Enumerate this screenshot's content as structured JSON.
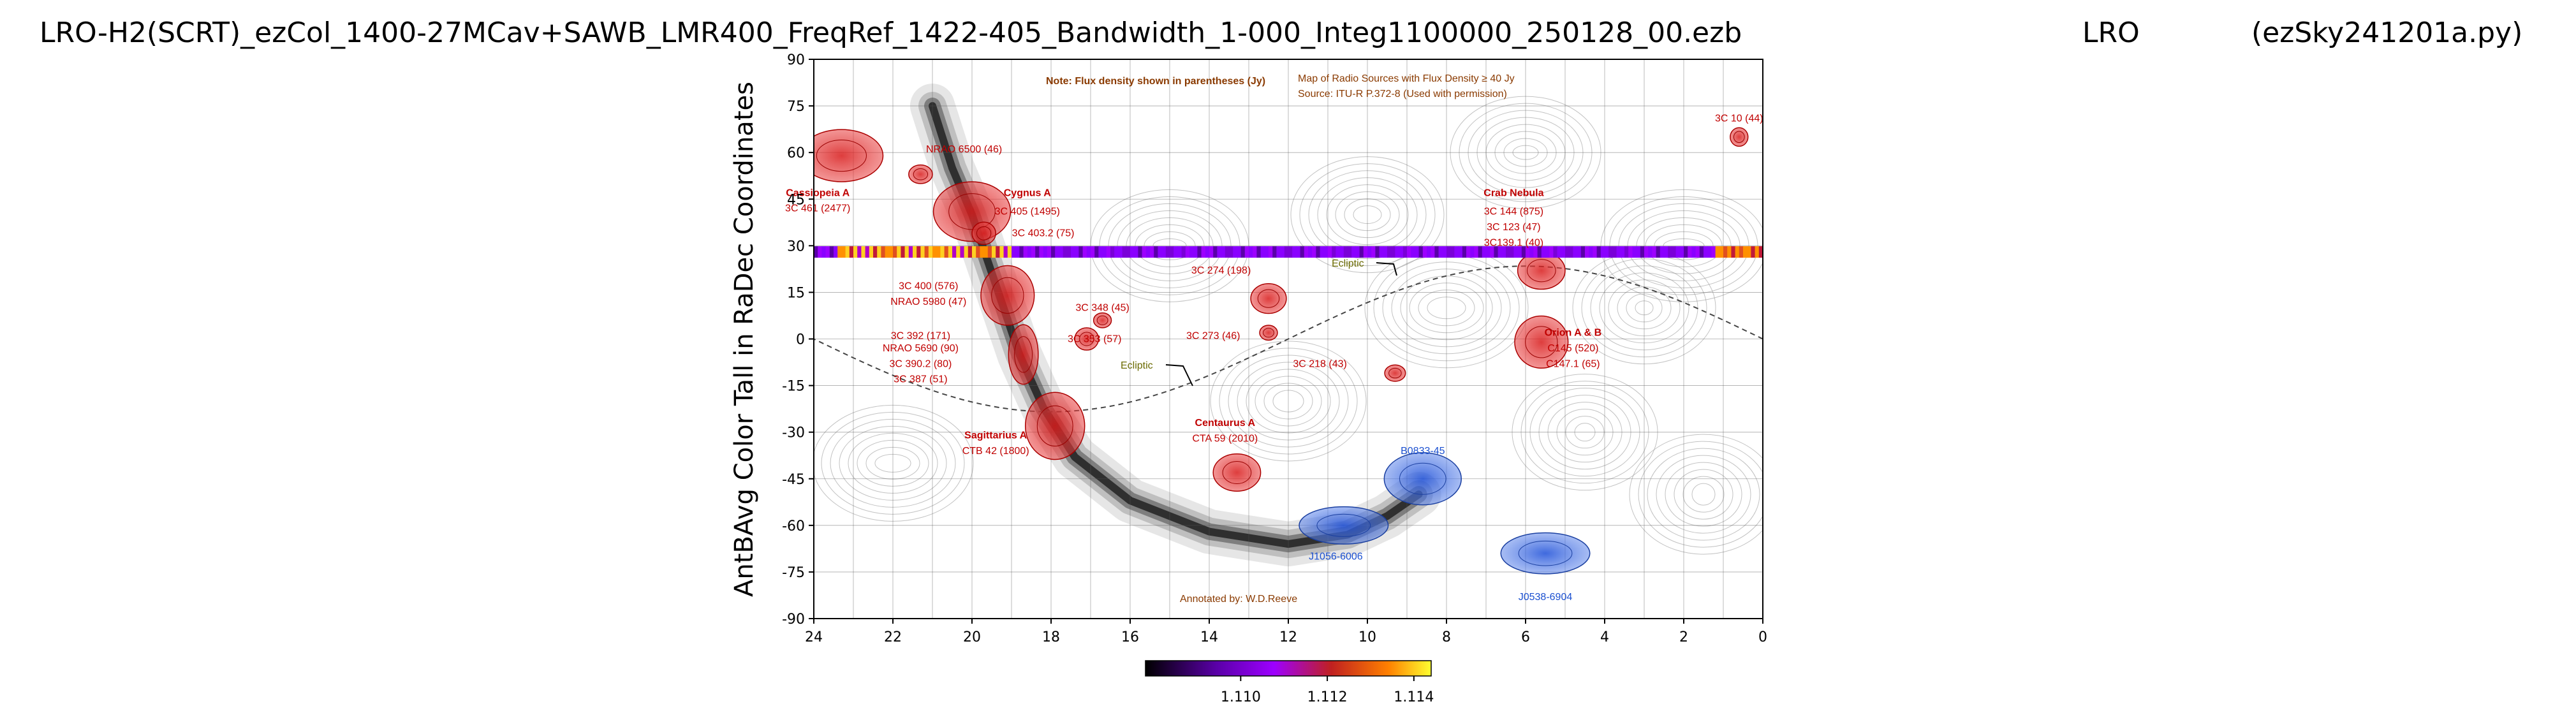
{
  "chart_data": {
    "type": "heatmap",
    "title_left": "LRO-H2(SCRT)_ezCol_1400-27MCav+SAWB_LMR400_FreqRef_1422-405_Bandwidth_1-000_Integ1100000_250128_00.ezb",
    "title_mid": "LRO",
    "title_right": "(ezSky241201a.py)",
    "ylabel": "AntBAvg Color Tall in RaDec Coordinates",
    "xlim": [
      24,
      0
    ],
    "ylim": [
      -90,
      90
    ],
    "x_ticks": [
      "24",
      "22",
      "20",
      "18",
      "16",
      "14",
      "12",
      "10",
      "8",
      "6",
      "4",
      "2",
      "0"
    ],
    "y_ticks": [
      "90",
      "75",
      "60",
      "45",
      "30",
      "15",
      "0",
      "-15",
      "-30",
      "-45",
      "-60",
      "-75",
      "-90"
    ],
    "measured_dec": 28,
    "colorbar": {
      "ticks": [
        "1.110",
        "1.112",
        "1.114"
      ],
      "tick_values": [
        1.11,
        1.112,
        1.114
      ],
      "range": [
        1.1078,
        1.1144
      ]
    },
    "overlay": {
      "map_title": "Map of Radio Sources with Flux Density ≥ 40 Jy",
      "note": "Note: Flux density shown in parentheses (Jy)",
      "source": "Source: ITU-R P.372-8 (Used with permission)",
      "annotated": "Annotated by: W.D.Reeve",
      "ecliptic_label": "Ecliptic",
      "labels": [
        {
          "text": "3C 10 (44)",
          "ra": 0.6,
          "dec": 70
        },
        {
          "text": "NRAO 6500 (46)",
          "ra": 20.2,
          "dec": 60
        },
        {
          "text": "Cassiopeia A",
          "ra": 23.9,
          "dec": 46,
          "bold": true
        },
        {
          "text": "3C 461 (2477)",
          "ra": 23.9,
          "dec": 41
        },
        {
          "text": "Cygnus A",
          "ra": 18.6,
          "dec": 46,
          "bold": true
        },
        {
          "text": "3C 405 (1495)",
          "ra": 18.6,
          "dec": 40
        },
        {
          "text": "3C 403.2 (75)",
          "ra": 18.2,
          "dec": 33
        },
        {
          "text": "Crab Nebula",
          "ra": 6.3,
          "dec": 46,
          "bold": true
        },
        {
          "text": "3C 144 (875)",
          "ra": 6.3,
          "dec": 40
        },
        {
          "text": "3C 123 (47)",
          "ra": 6.3,
          "dec": 35
        },
        {
          "text": "3C139.1 (40)",
          "ra": 6.3,
          "dec": 30
        },
        {
          "text": "3C 274 (198)",
          "ra": 13.7,
          "dec": 21
        },
        {
          "text": "3C 400 (576)",
          "ra": 21.1,
          "dec": 16
        },
        {
          "text": "NRAO 5980 (47)",
          "ra": 21.1,
          "dec": 11
        },
        {
          "text": "3C 348 (45)",
          "ra": 16.7,
          "dec": 9
        },
        {
          "text": "3C 392 (171)",
          "ra": 21.3,
          "dec": 0
        },
        {
          "text": "NRAO 5690 (90)",
          "ra": 21.3,
          "dec": -4
        },
        {
          "text": "3C 390.2 (80)",
          "ra": 21.3,
          "dec": -9
        },
        {
          "text": "3C 387 (51)",
          "ra": 21.3,
          "dec": -14
        },
        {
          "text": "3C 353 (57)",
          "ra": 16.9,
          "dec": -1
        },
        {
          "text": "3C 273 (46)",
          "ra": 13.9,
          "dec": 0
        },
        {
          "text": "3C 218 (43)",
          "ra": 11.2,
          "dec": -9
        },
        {
          "text": "Orion A & B",
          "ra": 4.8,
          "dec": 1,
          "bold": true
        },
        {
          "text": "C145 (520)",
          "ra": 4.8,
          "dec": -4
        },
        {
          "text": "C147.1 (65)",
          "ra": 4.8,
          "dec": -9
        },
        {
          "text": "Sagittarius A",
          "ra": 19.4,
          "dec": -32,
          "bold": true
        },
        {
          "text": "CTB 42 (1800)",
          "ra": 19.4,
          "dec": -37
        },
        {
          "text": "Centaurus A",
          "ra": 13.6,
          "dec": -28,
          "bold": true
        },
        {
          "text": "CTA 59 (2010)",
          "ra": 13.6,
          "dec": -33
        },
        {
          "text": "B0833-45",
          "ra": 8.6,
          "dec": -37,
          "blue": true
        },
        {
          "text": "J1056-6006",
          "ra": 10.8,
          "dec": -71,
          "blue": true
        },
        {
          "text": "J0538-6904",
          "ra": 5.5,
          "dec": -84,
          "blue": true
        }
      ],
      "red_sources": [
        {
          "ra": 23.3,
          "dec": 59,
          "w": 1.4,
          "h": 7
        },
        {
          "ra": 21.3,
          "dec": 53,
          "w": 0.4,
          "h": 2.5
        },
        {
          "ra": 20.0,
          "dec": 41,
          "w": 1.3,
          "h": 8
        },
        {
          "ra": 19.7,
          "dec": 34,
          "w": 0.4,
          "h": 3
        },
        {
          "ra": 19.1,
          "dec": 14,
          "w": 0.9,
          "h": 8
        },
        {
          "ra": 18.7,
          "dec": -5,
          "w": 0.5,
          "h": 8
        },
        {
          "ra": 17.1,
          "dec": 0,
          "w": 0.4,
          "h": 3
        },
        {
          "ra": 16.7,
          "dec": 6,
          "w": 0.3,
          "h": 2
        },
        {
          "ra": 17.9,
          "dec": -28,
          "w": 1.0,
          "h": 9
        },
        {
          "ra": 13.3,
          "dec": -43,
          "w": 0.8,
          "h": 5
        },
        {
          "ra": 12.5,
          "dec": 13,
          "w": 0.6,
          "h": 4
        },
        {
          "ra": 12.5,
          "dec": 2,
          "w": 0.3,
          "h": 2
        },
        {
          "ra": 9.3,
          "dec": -11,
          "w": 0.35,
          "h": 2.2
        },
        {
          "ra": 5.6,
          "dec": 22,
          "w": 0.8,
          "h": 5
        },
        {
          "ra": 5.6,
          "dec": -1,
          "w": 0.9,
          "h": 7
        },
        {
          "ra": 0.6,
          "dec": 65,
          "w": 0.3,
          "h": 2.5
        }
      ],
      "blue_sources": [
        {
          "ra": 8.6,
          "dec": -45,
          "w": 1.3,
          "h": 7
        },
        {
          "ra": 10.6,
          "dec": -60,
          "w": 1.5,
          "h": 5
        },
        {
          "ra": 5.5,
          "dec": -69,
          "w": 1.5,
          "h": 5.5
        }
      ]
    }
  }
}
